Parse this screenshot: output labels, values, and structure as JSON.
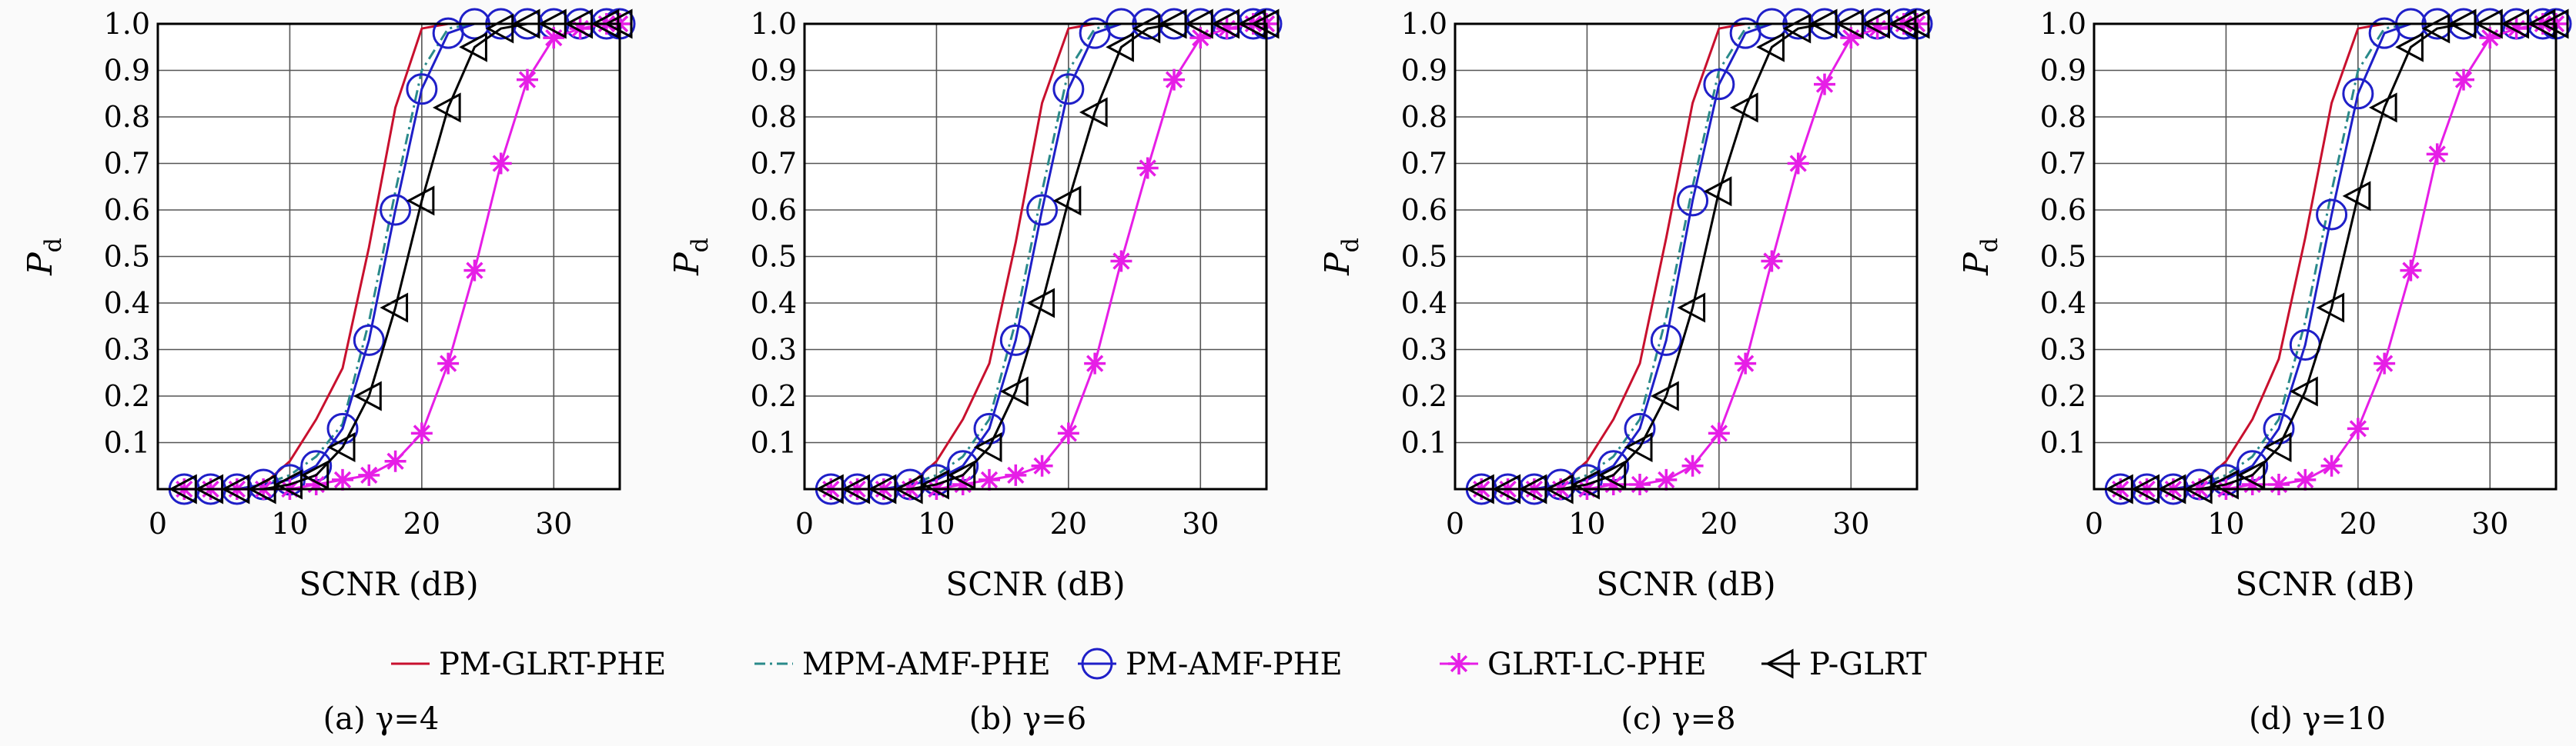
{
  "figure": {
    "legend": [
      {
        "name": "PM-GLRT-PHE",
        "color": "#c8102e",
        "dash": "",
        "marker": "none"
      },
      {
        "name": "MPM-AMF-PHE",
        "color": "#2a8a8a",
        "dash": "dashdot",
        "marker": "none"
      },
      {
        "name": "PM-AMF-PHE",
        "color": "#1f1fc8",
        "dash": "",
        "marker": "circle"
      },
      {
        "name": "GLRT-LC-PHE",
        "color": "#e61ee6",
        "dash": "",
        "marker": "star"
      },
      {
        "name": "P-GLRT",
        "color": "#000000",
        "dash": "",
        "marker": "triangle-left"
      }
    ]
  },
  "chart_data": [
    {
      "type": "line",
      "caption": "(a) γ=4",
      "xlabel": "SCNR (dB)",
      "ylabel": "Pd",
      "xlim": [
        0,
        35
      ],
      "ylim": [
        0,
        1.0
      ],
      "xticks": [
        0,
        10,
        20,
        30
      ],
      "yticks": [
        0.1,
        0.2,
        0.3,
        0.4,
        0.5,
        0.6,
        0.7,
        0.8,
        0.9,
        1.0
      ],
      "grid": true,
      "x": [
        2,
        4,
        6,
        8,
        10,
        12,
        14,
        16,
        18,
        20,
        22,
        24,
        26,
        28,
        30,
        32,
        34,
        35
      ],
      "series": [
        {
          "name": "PM-GLRT-PHE",
          "values": [
            0,
            0,
            0,
            0.01,
            0.06,
            0.15,
            0.26,
            0.52,
            0.82,
            0.99,
            1.0,
            1.0,
            1.0,
            1.0,
            1.0,
            1.0,
            1.0,
            1.0
          ]
        },
        {
          "name": "MPM-AMF-PHE",
          "values": [
            0,
            0,
            0,
            0.01,
            0.03,
            0.07,
            0.14,
            0.36,
            0.64,
            0.9,
            0.99,
            1.0,
            1.0,
            1.0,
            1.0,
            1.0,
            1.0,
            1.0
          ]
        },
        {
          "name": "PM-AMF-PHE",
          "values": [
            0,
            0,
            0,
            0.01,
            0.02,
            0.05,
            0.13,
            0.32,
            0.6,
            0.86,
            0.98,
            1.0,
            1.0,
            1.0,
            1.0,
            1.0,
            1.0,
            1.0
          ]
        },
        {
          "name": "GLRT-LC-PHE",
          "values": [
            0,
            0,
            0,
            0,
            0,
            0.01,
            0.02,
            0.03,
            0.06,
            0.12,
            0.27,
            0.47,
            0.7,
            0.88,
            0.97,
            0.99,
            1.0,
            1.0
          ]
        },
        {
          "name": "P-GLRT",
          "values": [
            0,
            0,
            0,
            0,
            0.01,
            0.03,
            0.09,
            0.2,
            0.39,
            0.62,
            0.82,
            0.95,
            0.99,
            1.0,
            1.0,
            1.0,
            1.0,
            1.0
          ]
        }
      ]
    },
    {
      "type": "line",
      "caption": "(b) γ=6",
      "xlabel": "SCNR (dB)",
      "ylabel": "Pd",
      "xlim": [
        0,
        35
      ],
      "ylim": [
        0,
        1.0
      ],
      "xticks": [
        0,
        10,
        20,
        30
      ],
      "yticks": [
        0.1,
        0.2,
        0.3,
        0.4,
        0.5,
        0.6,
        0.7,
        0.8,
        0.9,
        1.0
      ],
      "grid": true,
      "x": [
        2,
        4,
        6,
        8,
        10,
        12,
        14,
        16,
        18,
        20,
        22,
        24,
        26,
        28,
        30,
        32,
        34,
        35
      ],
      "series": [
        {
          "name": "PM-GLRT-PHE",
          "values": [
            0,
            0,
            0,
            0.01,
            0.06,
            0.15,
            0.27,
            0.53,
            0.83,
            0.99,
            1.0,
            1.0,
            1.0,
            1.0,
            1.0,
            1.0,
            1.0,
            1.0
          ]
        },
        {
          "name": "MPM-AMF-PHE",
          "values": [
            0,
            0,
            0,
            0.01,
            0.03,
            0.07,
            0.15,
            0.36,
            0.64,
            0.9,
            0.99,
            1.0,
            1.0,
            1.0,
            1.0,
            1.0,
            1.0,
            1.0
          ]
        },
        {
          "name": "PM-AMF-PHE",
          "values": [
            0,
            0,
            0,
            0.01,
            0.02,
            0.05,
            0.13,
            0.32,
            0.6,
            0.86,
            0.98,
            1.0,
            1.0,
            1.0,
            1.0,
            1.0,
            1.0,
            1.0
          ]
        },
        {
          "name": "GLRT-LC-PHE",
          "values": [
            0,
            0,
            0,
            0,
            0,
            0.01,
            0.02,
            0.03,
            0.05,
            0.12,
            0.27,
            0.49,
            0.69,
            0.88,
            0.97,
            0.99,
            1.0,
            1.0
          ]
        },
        {
          "name": "P-GLRT",
          "values": [
            0,
            0,
            0,
            0,
            0.01,
            0.03,
            0.09,
            0.21,
            0.4,
            0.62,
            0.81,
            0.95,
            0.99,
            1.0,
            1.0,
            1.0,
            1.0,
            1.0
          ]
        }
      ]
    },
    {
      "type": "line",
      "caption": "(c) γ=8",
      "xlabel": "SCNR (dB)",
      "ylabel": "Pd",
      "xlim": [
        0,
        35
      ],
      "ylim": [
        0,
        1.0
      ],
      "xticks": [
        0,
        10,
        20,
        30
      ],
      "yticks": [
        0.1,
        0.2,
        0.3,
        0.4,
        0.5,
        0.6,
        0.7,
        0.8,
        0.9,
        1.0
      ],
      "grid": true,
      "x": [
        2,
        4,
        6,
        8,
        10,
        12,
        14,
        16,
        18,
        20,
        22,
        24,
        26,
        28,
        30,
        32,
        34,
        35
      ],
      "series": [
        {
          "name": "PM-GLRT-PHE",
          "values": [
            0,
            0,
            0,
            0.01,
            0.06,
            0.15,
            0.27,
            0.54,
            0.83,
            0.99,
            1.0,
            1.0,
            1.0,
            1.0,
            1.0,
            1.0,
            1.0,
            1.0
          ]
        },
        {
          "name": "MPM-AMF-PHE",
          "values": [
            0,
            0,
            0,
            0.01,
            0.03,
            0.07,
            0.15,
            0.37,
            0.65,
            0.9,
            0.99,
            1.0,
            1.0,
            1.0,
            1.0,
            1.0,
            1.0,
            1.0
          ]
        },
        {
          "name": "PM-AMF-PHE",
          "values": [
            0,
            0,
            0,
            0.01,
            0.02,
            0.05,
            0.13,
            0.32,
            0.62,
            0.87,
            0.98,
            1.0,
            1.0,
            1.0,
            1.0,
            1.0,
            1.0,
            1.0
          ]
        },
        {
          "name": "GLRT-LC-PHE",
          "values": [
            0,
            0,
            0,
            0,
            0,
            0.01,
            0.01,
            0.02,
            0.05,
            0.12,
            0.27,
            0.49,
            0.7,
            0.87,
            0.97,
            0.99,
            1.0,
            1.0
          ]
        },
        {
          "name": "P-GLRT",
          "values": [
            0,
            0,
            0,
            0,
            0.01,
            0.03,
            0.09,
            0.2,
            0.39,
            0.64,
            0.82,
            0.95,
            0.99,
            1.0,
            1.0,
            1.0,
            1.0,
            1.0
          ]
        }
      ]
    },
    {
      "type": "line",
      "caption": "(d) γ=10",
      "xlabel": "SCNR (dB)",
      "ylabel": "Pd",
      "xlim": [
        0,
        35
      ],
      "ylim": [
        0,
        1.0
      ],
      "xticks": [
        0,
        10,
        20,
        30
      ],
      "yticks": [
        0.1,
        0.2,
        0.3,
        0.4,
        0.5,
        0.6,
        0.7,
        0.8,
        0.9,
        1.0
      ],
      "grid": true,
      "x": [
        2,
        4,
        6,
        8,
        10,
        12,
        14,
        16,
        18,
        20,
        22,
        24,
        26,
        28,
        30,
        32,
        34,
        35
      ],
      "series": [
        {
          "name": "PM-GLRT-PHE",
          "values": [
            0,
            0,
            0,
            0.01,
            0.06,
            0.15,
            0.28,
            0.54,
            0.83,
            0.99,
            1.0,
            1.0,
            1.0,
            1.0,
            1.0,
            1.0,
            1.0,
            1.0
          ]
        },
        {
          "name": "MPM-AMF-PHE",
          "values": [
            0,
            0,
            0,
            0.01,
            0.03,
            0.07,
            0.15,
            0.36,
            0.64,
            0.9,
            0.99,
            1.0,
            1.0,
            1.0,
            1.0,
            1.0,
            1.0,
            1.0
          ]
        },
        {
          "name": "PM-AMF-PHE",
          "values": [
            0,
            0,
            0,
            0.01,
            0.02,
            0.05,
            0.13,
            0.31,
            0.59,
            0.85,
            0.98,
            1.0,
            1.0,
            1.0,
            1.0,
            1.0,
            1.0,
            1.0
          ]
        },
        {
          "name": "GLRT-LC-PHE",
          "values": [
            0,
            0,
            0,
            0,
            0,
            0.01,
            0.01,
            0.02,
            0.05,
            0.13,
            0.27,
            0.47,
            0.72,
            0.88,
            0.97,
            0.99,
            1.0,
            1.0
          ]
        },
        {
          "name": "P-GLRT",
          "values": [
            0,
            0,
            0,
            0,
            0.01,
            0.03,
            0.09,
            0.21,
            0.39,
            0.63,
            0.82,
            0.95,
            0.99,
            1.0,
            1.0,
            1.0,
            1.0,
            1.0
          ]
        }
      ]
    }
  ]
}
